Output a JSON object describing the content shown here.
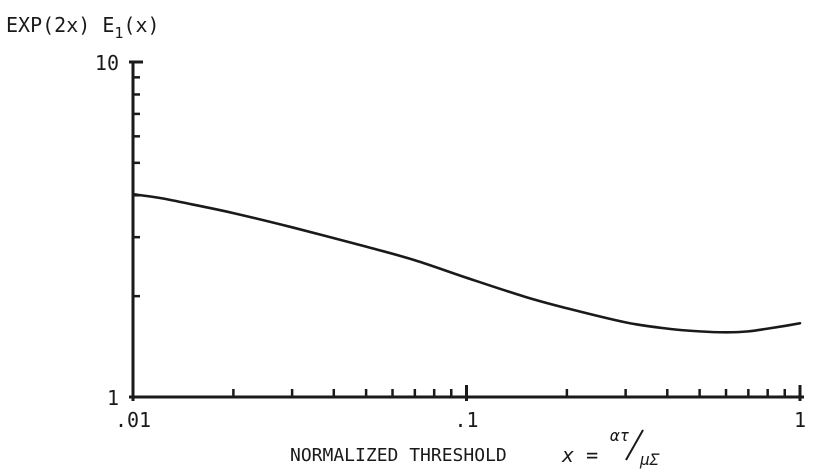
{
  "chart_data": {
    "type": "line",
    "ylabel": {
      "main": "EXP(2x) E",
      "sub": "1",
      "tail": "(x)"
    },
    "xlabel": {
      "text": "NORMALIZED THRESHOLD",
      "formula_var": "x =",
      "formula_num": "ατ",
      "formula_den": "μΣ"
    },
    "x_scale": "log",
    "y_scale": "log",
    "xlim": [
      0.01,
      1
    ],
    "ylim": [
      1,
      10
    ],
    "x_tick_labels": [
      {
        "value": 0.01,
        "label": ".01"
      },
      {
        "value": 0.1,
        "label": ".1"
      },
      {
        "value": 1,
        "label": "1"
      }
    ],
    "y_tick_labels": [
      {
        "value": 1,
        "label": "1"
      },
      {
        "value": 10,
        "label": "10"
      }
    ],
    "x_minor_ticks": [
      0.02,
      0.03,
      0.04,
      0.05,
      0.06,
      0.07,
      0.08,
      0.09,
      0.2,
      0.3,
      0.4,
      0.5,
      0.6,
      0.7,
      0.8,
      0.9
    ],
    "y_minor_ticks": [
      2,
      3,
      4,
      5,
      6,
      7,
      8,
      9
    ],
    "grid": false,
    "series": [
      {
        "x": [
          0.01,
          0.012,
          0.015,
          0.02,
          0.03,
          0.05,
          0.07,
          0.1,
          0.15,
          0.2,
          0.3,
          0.4,
          0.5,
          0.6,
          0.7,
          0.8,
          0.9,
          1.0
        ],
        "y": [
          4.03,
          3.93,
          3.76,
          3.54,
          3.21,
          2.81,
          2.56,
          2.27,
          1.99,
          1.84,
          1.67,
          1.6,
          1.57,
          1.56,
          1.57,
          1.6,
          1.63,
          1.66
        ]
      }
    ]
  }
}
